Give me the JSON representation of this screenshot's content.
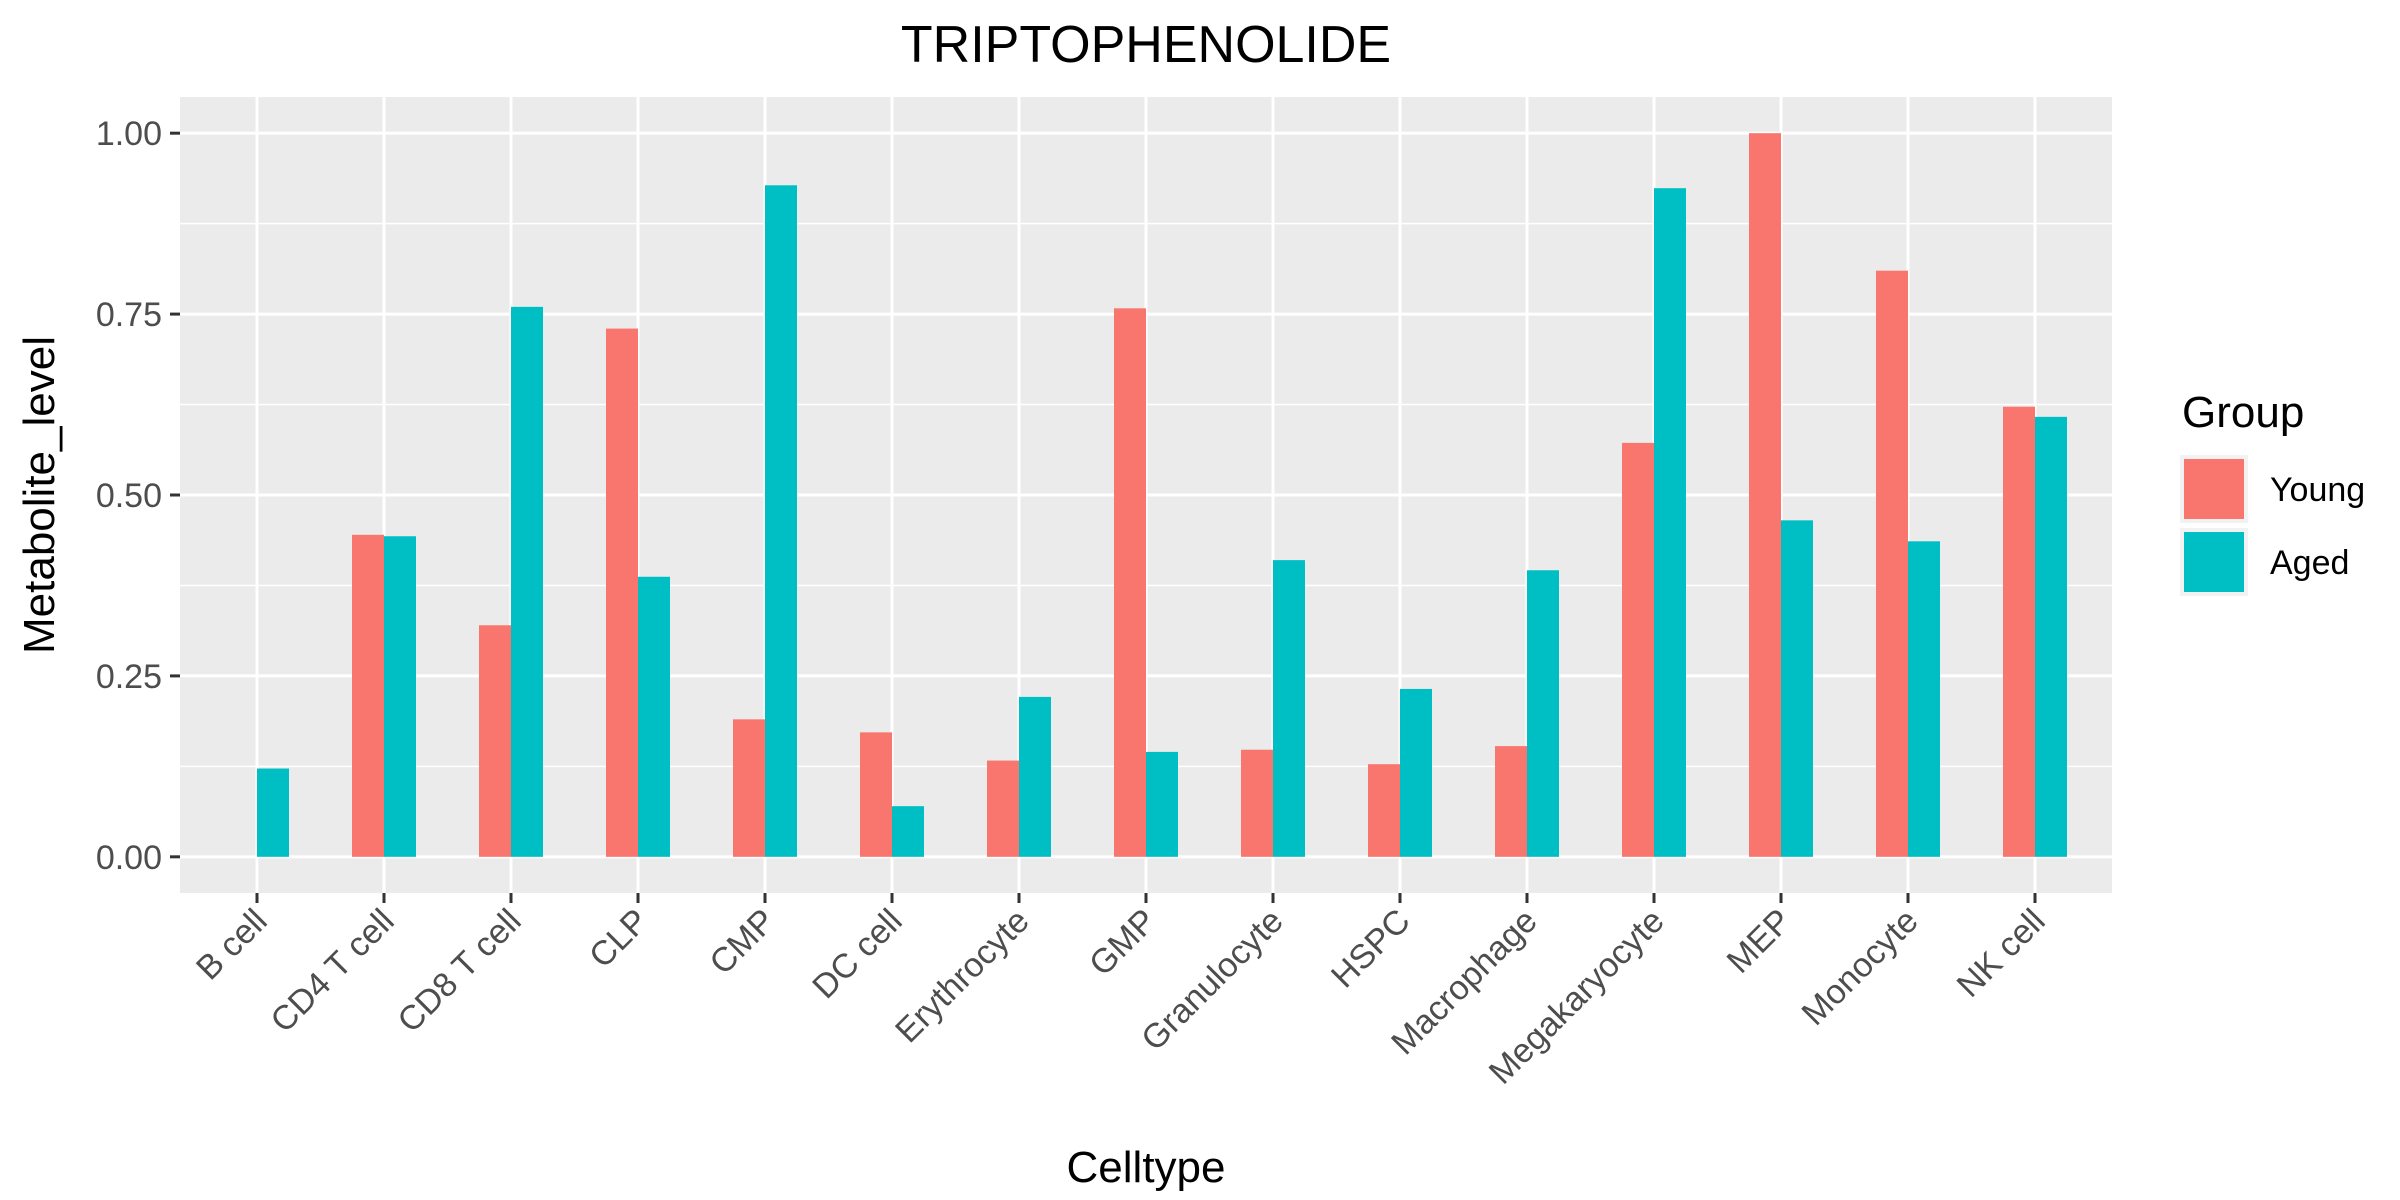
{
  "chart_data": {
    "type": "bar",
    "title": "TRIPTOPHENOLIDE",
    "xlabel": "Celltype",
    "ylabel": "Metabolite_level",
    "categories": [
      "B cell",
      "CD4 T cell",
      "CD8 T cell",
      "CLP",
      "CMP",
      "DC cell",
      "Erythrocyte",
      "GMP",
      "Granulocyte",
      "HSPC",
      "Macrophage",
      "Megakaryocyte",
      "MEP",
      "Monocyte",
      "NK cell"
    ],
    "series": [
      {
        "name": "Young",
        "color": "#F8766D",
        "values": [
          null,
          0.445,
          0.32,
          0.73,
          0.19,
          0.172,
          0.133,
          0.758,
          0.148,
          0.128,
          0.153,
          0.572,
          1.0,
          0.81,
          0.622
        ]
      },
      {
        "name": "Aged",
        "color": "#00BFC4",
        "values": [
          0.122,
          0.443,
          0.76,
          0.387,
          0.928,
          0.07,
          0.221,
          0.145,
          0.41,
          0.232,
          0.396,
          0.924,
          0.465,
          0.436,
          0.608
        ]
      }
    ],
    "ylim": [
      -0.05,
      1.05
    ],
    "yticks": [
      0.0,
      0.25,
      0.5,
      0.75,
      1.0
    ],
    "ytick_labels": [
      "0.00",
      "0.25",
      "0.50",
      "0.75",
      "1.00"
    ],
    "legend_title": "Group",
    "legend_position": "right",
    "grid": true,
    "panel_background": "#EBEBEB"
  }
}
